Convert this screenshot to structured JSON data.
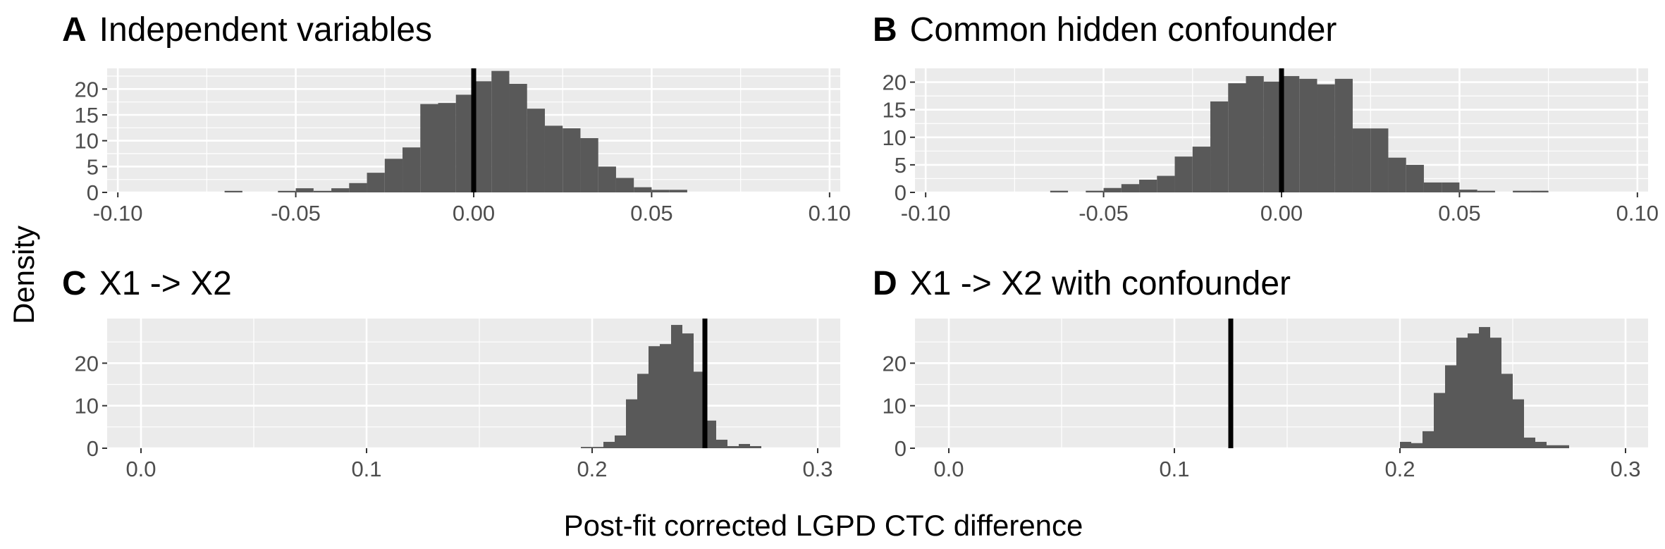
{
  "figure": {
    "ylabel": "Density",
    "xlabel": "Post-fit corrected LGPD CTC difference"
  },
  "chart_data": [
    {
      "type": "bar",
      "panel": "A",
      "title": "Independent variables",
      "xlim": [
        -0.103,
        0.103
      ],
      "ylim": [
        0,
        24
      ],
      "xticks": [
        -0.1,
        -0.05,
        0.0,
        0.05,
        0.1
      ],
      "xtick_labels": [
        "-0.10",
        "-0.05",
        "0.00",
        "0.05",
        "0.10"
      ],
      "yticks": [
        0,
        5,
        10,
        15,
        20
      ],
      "bin_start": -0.07,
      "bin_width": 0.005,
      "values": [
        0.3,
        0,
        0,
        0.3,
        0.8,
        0.3,
        0.8,
        1.8,
        3.8,
        6.5,
        8.7,
        17.1,
        17.3,
        18.9,
        21.5,
        23.5,
        21.0,
        16.2,
        12.9,
        12.4,
        10.5,
        5.0,
        2.8,
        1.0,
        0.5,
        0.5
      ],
      "vline": 0.0,
      "grid": true
    },
    {
      "type": "bar",
      "panel": "B",
      "title": "Common hidden confounder",
      "xlim": [
        -0.103,
        0.103
      ],
      "ylim": [
        0,
        22.5
      ],
      "xticks": [
        -0.1,
        -0.05,
        0.0,
        0.05,
        0.1
      ],
      "xtick_labels": [
        "-0.10",
        "-0.05",
        "0.00",
        "0.05",
        "0.10"
      ],
      "yticks": [
        0,
        5,
        10,
        15,
        20
      ],
      "bin_start": -0.065,
      "bin_width": 0.005,
      "values": [
        0.3,
        0,
        0.3,
        0.8,
        1.5,
        2.3,
        3.0,
        6.5,
        8.3,
        16.5,
        19.8,
        21.1,
        20.1,
        21.1,
        20.6,
        19.6,
        20.6,
        11.6,
        11.6,
        6.3,
        5.0,
        1.8,
        1.8,
        0.5,
        0.3,
        0,
        0.3,
        0.3
      ],
      "vline": 0.0,
      "grid": true
    },
    {
      "type": "bar",
      "panel": "C",
      "title": "X1 -> X2",
      "xlim": [
        -0.015,
        0.31
      ],
      "ylim": [
        0,
        30.5
      ],
      "xticks": [
        0.0,
        0.1,
        0.2,
        0.3
      ],
      "xtick_labels": [
        "0.0",
        "0.1",
        "0.2",
        "0.3"
      ],
      "yticks": [
        0,
        10,
        20
      ],
      "bin_start": 0.195,
      "bin_width": 0.005,
      "values": [
        0.3,
        0.3,
        1.5,
        3.0,
        11.5,
        17.5,
        24.0,
        24.5,
        29.0,
        27.0,
        18.0,
        6.5,
        2.0,
        0.5,
        1.0,
        0.5
      ],
      "vline": 0.25,
      "grid": true
    },
    {
      "type": "bar",
      "panel": "D",
      "title": "X1 -> X2 with confounder",
      "xlim": [
        -0.015,
        0.31
      ],
      "ylim": [
        0,
        30.5
      ],
      "xticks": [
        0.0,
        0.1,
        0.2,
        0.3
      ],
      "xtick_labels": [
        "0.0",
        "0.1",
        "0.2",
        "0.3"
      ],
      "yticks": [
        0,
        10,
        20
      ],
      "bin_start": 0.2,
      "bin_width": 0.005,
      "values": [
        1.5,
        1.2,
        4.0,
        13.0,
        19.5,
        26.0,
        27.0,
        28.5,
        26.0,
        17.5,
        11.5,
        2.5,
        1.5,
        0.7,
        0.7
      ],
      "vline": 0.125,
      "grid": true
    }
  ]
}
